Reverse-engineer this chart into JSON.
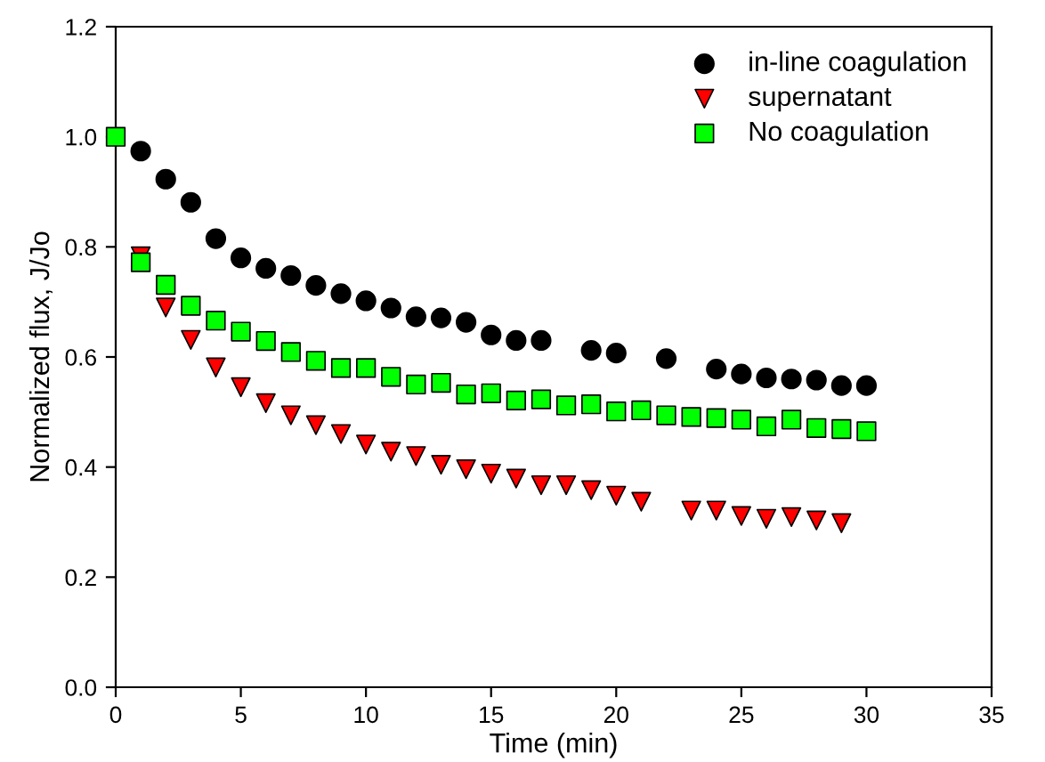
{
  "chart_data": {
    "type": "scatter",
    "xlabel": "Time (min)",
    "ylabel": "Normalized flux, J/Jo",
    "xlim": [
      0,
      35
    ],
    "xticks": [
      0,
      5,
      10,
      15,
      20,
      25,
      30,
      35
    ],
    "ylim": [
      0,
      1.2
    ],
    "yticks": [
      {
        "value": 0,
        "label": "0.0"
      },
      {
        "value": 0.2,
        "label": "0.2"
      },
      {
        "value": 0.4,
        "label": "0.4"
      },
      {
        "value": 0.6,
        "label": "0.6"
      },
      {
        "value": 0.8,
        "label": "0.8"
      },
      {
        "value": 1.0,
        "label": "1.0"
      },
      {
        "value": 1.2,
        "label": "1.2"
      }
    ],
    "x": [
      0,
      1,
      2,
      3,
      4,
      5,
      6,
      7,
      8,
      9,
      10,
      11,
      12,
      13,
      14,
      15,
      16,
      17,
      18,
      19,
      20,
      21,
      22,
      23,
      24,
      25,
      26,
      27,
      28,
      29,
      30
    ],
    "legend": "top right",
    "grid": false,
    "series": [
      {
        "name": "in-line coagulation",
        "color": "#000000",
        "marker": "circle",
        "values": [
          null,
          0.974,
          0.923,
          0.881,
          0.815,
          0.78,
          0.761,
          0.748,
          0.73,
          0.715,
          0.702,
          0.689,
          0.673,
          0.671,
          0.663,
          0.64,
          0.63,
          0.63,
          null,
          0.612,
          0.607,
          null,
          0.597,
          null,
          0.578,
          0.569,
          0.562,
          0.56,
          0.558,
          0.548,
          0.548
        ]
      },
      {
        "name": "supernatant",
        "color": "#ff0000",
        "marker": "triangle",
        "values": [
          null,
          0.783,
          0.69,
          0.631,
          0.581,
          0.545,
          0.516,
          0.494,
          0.476,
          0.46,
          0.441,
          0.428,
          0.42,
          0.404,
          0.396,
          0.388,
          0.379,
          0.367,
          0.367,
          0.358,
          0.348,
          0.337,
          null,
          0.321,
          0.321,
          0.311,
          0.306,
          0.309,
          0.303,
          0.298,
          null
        ]
      },
      {
        "name": "No coagulation",
        "color": "#00ff00",
        "marker": "square",
        "values": [
          1.0,
          0.772,
          0.731,
          0.693,
          0.666,
          0.646,
          0.629,
          0.609,
          0.593,
          0.58,
          0.58,
          0.564,
          0.55,
          0.553,
          0.532,
          0.534,
          0.521,
          0.523,
          0.512,
          0.514,
          0.501,
          0.503,
          0.494,
          0.491,
          0.489,
          0.486,
          0.474,
          0.486,
          0.471,
          0.469,
          0.465
        ]
      }
    ]
  }
}
